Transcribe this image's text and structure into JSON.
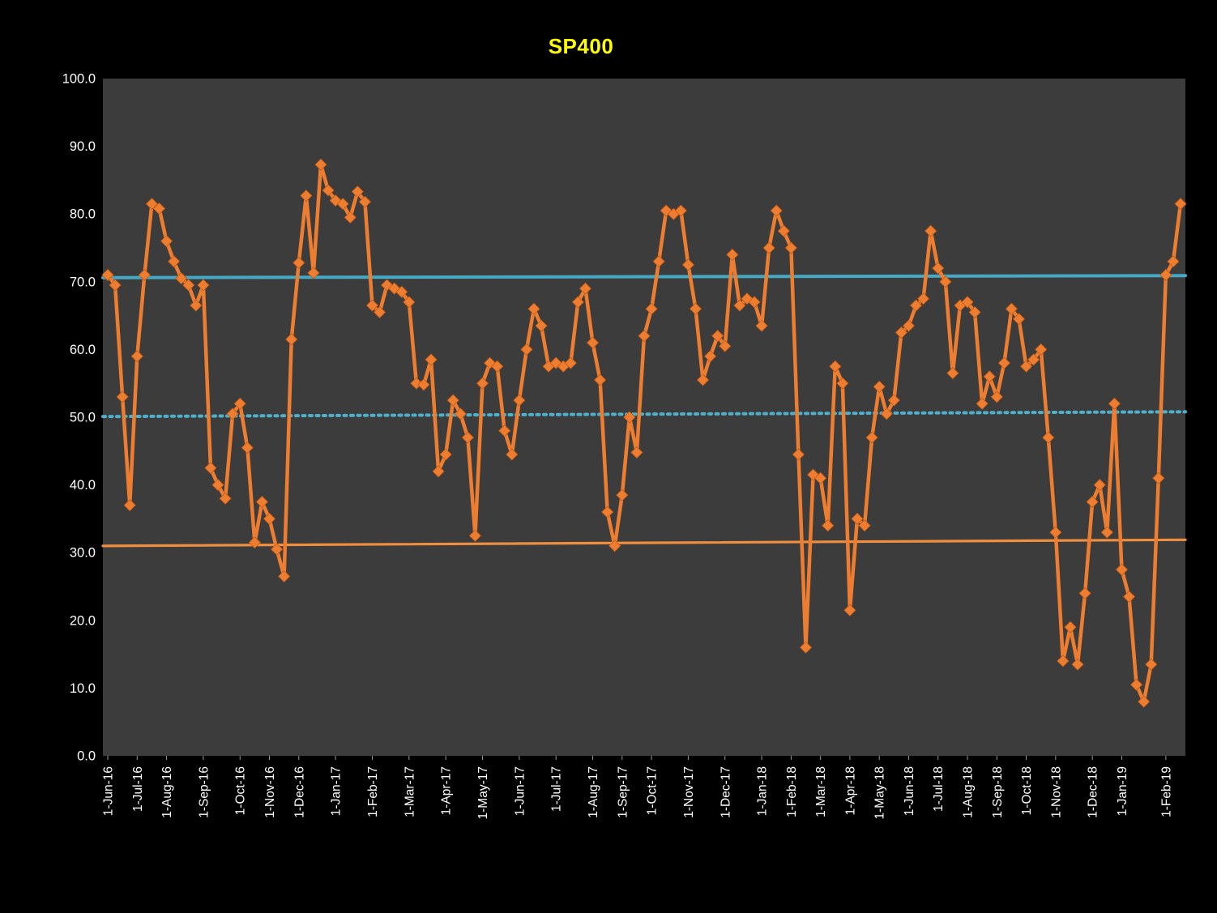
{
  "page": {
    "background": "#000000"
  },
  "chart_data": {
    "type": "line",
    "title": "SP400",
    "title_color": "#FFFF00",
    "plot_bg": "#3C3C3C",
    "axis_text_color": "#FFFFFF",
    "ylim": [
      0,
      100
    ],
    "ytick_step": 10,
    "ytick_labels": [
      "0.0",
      "10.0",
      "20.0",
      "30.0",
      "40.0",
      "50.0",
      "60.0",
      "70.0",
      "80.0",
      "90.0",
      "100.0"
    ],
    "legend": "none",
    "grid": "off",
    "series": {
      "name": "SP400",
      "color": "#ED7D31",
      "marker_color": "#ED7D31",
      "marker_edge_color": "#C55A11",
      "marker_shape": "diamond",
      "months": [
        {
          "label": "1-Jun-16",
          "values": [
            71.0,
            69.5,
            53.0,
            37.0
          ]
        },
        {
          "label": "1-Jul-16",
          "values": [
            59.0,
            71.0,
            81.5,
            80.8
          ]
        },
        {
          "label": "1-Aug-16",
          "values": [
            76.0,
            73.0,
            70.5,
            69.5,
            66.5
          ]
        },
        {
          "label": "1-Sep-16",
          "values": [
            69.5,
            42.5,
            40.0,
            38.0,
            50.5
          ]
        },
        {
          "label": "1-Oct-16",
          "values": [
            52.0,
            45.5,
            31.5,
            37.5
          ]
        },
        {
          "label": "1-Nov-16",
          "values": [
            35.0,
            30.5,
            26.5,
            61.5
          ]
        },
        {
          "label": "1-Dec-16",
          "values": [
            72.8,
            82.7,
            71.3,
            87.3,
            83.5
          ]
        },
        {
          "label": "1-Jan-17",
          "values": [
            82.0,
            81.5,
            79.5,
            83.3,
            81.8
          ]
        },
        {
          "label": "1-Feb-17",
          "values": [
            66.5,
            65.5,
            69.5,
            69.0,
            68.5
          ]
        },
        {
          "label": "1-Mar-17",
          "values": [
            67.0,
            55.0,
            54.8,
            58.5,
            42.0
          ]
        },
        {
          "label": "1-Apr-17",
          "values": [
            44.5,
            52.5,
            50.5,
            47.0,
            32.5
          ]
        },
        {
          "label": "1-May-17",
          "values": [
            55.0,
            58.0,
            57.5,
            48.0,
            44.5
          ]
        },
        {
          "label": "1-Jun-17",
          "values": [
            52.5,
            60.0,
            66.0,
            63.5,
            57.5
          ]
        },
        {
          "label": "1-Jul-17",
          "values": [
            58.0,
            57.5,
            58.0,
            67.0,
            69.0
          ]
        },
        {
          "label": "1-Aug-17",
          "values": [
            61.0,
            55.5,
            36.0,
            31.0
          ]
        },
        {
          "label": "1-Sep-17",
          "values": [
            38.5,
            50.0,
            44.8,
            62.0
          ]
        },
        {
          "label": "1-Oct-17",
          "values": [
            66.0,
            73.0,
            80.5,
            80.0,
            80.5
          ]
        },
        {
          "label": "1-Nov-17",
          "values": [
            72.5,
            66.0,
            55.5,
            59.0,
            62.0
          ]
        },
        {
          "label": "1-Dec-17",
          "values": [
            60.5,
            74.0,
            66.5,
            67.5,
            67.0
          ]
        },
        {
          "label": "1-Jan-18",
          "values": [
            63.5,
            75.0,
            80.5,
            77.5
          ]
        },
        {
          "label": "1-Feb-18",
          "values": [
            75.0,
            44.5,
            16.0,
            41.5
          ]
        },
        {
          "label": "1-Mar-18",
          "values": [
            41.0,
            34.0,
            57.5,
            55.0
          ]
        },
        {
          "label": "1-Apr-18",
          "values": [
            21.5,
            35.0,
            34.0,
            47.0
          ]
        },
        {
          "label": "1-May-18",
          "values": [
            54.5,
            50.5,
            52.5,
            62.5
          ]
        },
        {
          "label": "1-Jun-18",
          "values": [
            63.5,
            66.5,
            67.5,
            77.5
          ]
        },
        {
          "label": "1-Jul-18",
          "values": [
            72.0,
            70.0,
            56.5,
            66.5
          ]
        },
        {
          "label": "1-Aug-18",
          "values": [
            67.0,
            65.5,
            52.0,
            56.0
          ]
        },
        {
          "label": "1-Sep-18",
          "values": [
            53.0,
            58.0,
            66.0,
            64.5
          ]
        },
        {
          "label": "1-Oct-18",
          "values": [
            57.5,
            58.5,
            60.0,
            47.0
          ]
        },
        {
          "label": "1-Nov-18",
          "values": [
            33.0,
            14.0,
            19.0,
            13.5,
            24.0
          ]
        },
        {
          "label": "1-Dec-18",
          "values": [
            37.5,
            40.0,
            33.0,
            52.0
          ]
        },
        {
          "label": "1-Jan-19",
          "values": [
            27.5,
            23.5,
            10.5,
            8.0,
            13.5,
            41.0
          ]
        },
        {
          "label": "1-Feb-19",
          "values": [
            71.0,
            73.0,
            81.5
          ]
        }
      ]
    },
    "ref_lines": [
      {
        "name": "upper",
        "style": "solid",
        "color": "#45A9C4",
        "width": 4,
        "y_start": 70.6,
        "y_end": 70.9
      },
      {
        "name": "mid",
        "style": "dotted",
        "color": "#4FB0CC",
        "width": 4,
        "y_start": 50.1,
        "y_end": 50.8
      },
      {
        "name": "lower",
        "style": "solid",
        "color": "#EF8E3F",
        "width": 3.2,
        "y_start": 31.0,
        "y_end": 31.9
      }
    ]
  }
}
